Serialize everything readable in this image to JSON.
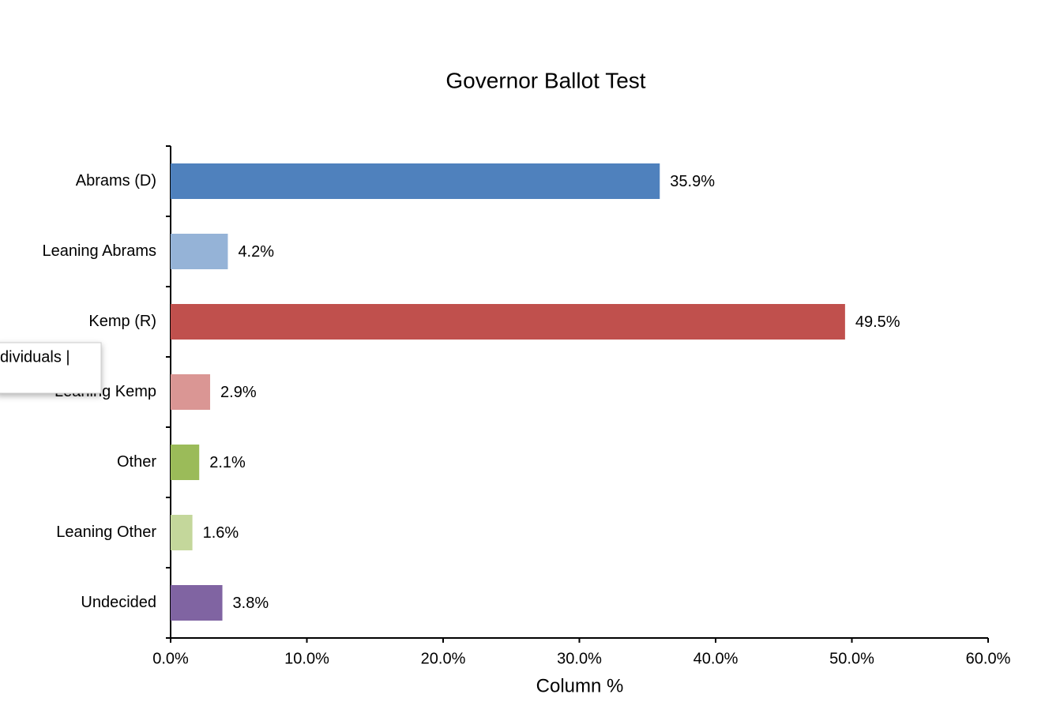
{
  "chart_data": {
    "type": "hbar",
    "title": "Governor Ballot Test",
    "x_label": "Column %",
    "categories": [
      "Abrams (D)",
      "Leaning Abrams",
      "Kemp (R)",
      "Leaning Kemp",
      "Other",
      "Leaning Other",
      "Undecided"
    ],
    "values": [
      35.9,
      4.2,
      49.5,
      2.9,
      2.1,
      1.6,
      3.8
    ],
    "value_labels": [
      "35.9%",
      "4.2%",
      "49.5%",
      "2.9%",
      "2.1%",
      "1.6%",
      "3.8%"
    ],
    "colors": [
      "#4f81bd",
      "#95b3d7",
      "#c0504d",
      "#da9694",
      "#9bbb59",
      "#c4d79b",
      "#8064a2"
    ],
    "xlim": [
      0,
      60
    ],
    "xticks": [
      {
        "value": 0,
        "label": "0.0%"
      },
      {
        "value": 10,
        "label": "10.0%"
      },
      {
        "value": 20,
        "label": "20.0%"
      },
      {
        "value": 30,
        "label": "30.0%"
      },
      {
        "value": 40,
        "label": "40.0%"
      },
      {
        "value": 50,
        "label": "50.0%"
      },
      {
        "value": 60,
        "label": "60.0%"
      }
    ]
  },
  "overlay": {
    "text": "dividuals |"
  }
}
